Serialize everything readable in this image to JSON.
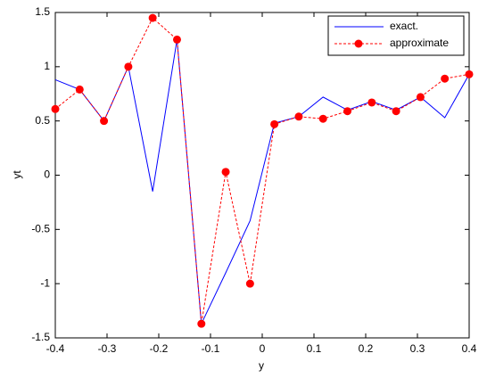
{
  "chart_data": {
    "type": "line",
    "x_label": "y",
    "y_label": "yt",
    "x": [
      -0.4,
      -0.3529,
      -0.3059,
      -0.2588,
      -0.2118,
      -0.1647,
      -0.1176,
      -0.0706,
      -0.0235,
      0.0235,
      0.0706,
      0.1176,
      0.1647,
      0.2118,
      0.2588,
      0.3059,
      0.3529,
      0.4
    ],
    "series": [
      {
        "name": "exact.",
        "color": "#0000ff",
        "line_style": "solid",
        "marker": "none",
        "values": [
          0.88,
          0.79,
          0.5,
          1.0,
          -0.15,
          1.25,
          -1.37,
          -0.9,
          -0.42,
          0.48,
          0.54,
          0.72,
          0.6,
          0.68,
          0.6,
          0.72,
          0.53,
          0.93
        ]
      },
      {
        "name": "approximate",
        "color": "#ff0000",
        "line_style": "dashed",
        "marker": "circle",
        "values": [
          0.61,
          0.79,
          0.5,
          1.0,
          1.45,
          1.25,
          -1.37,
          0.03,
          -1.0,
          0.47,
          0.54,
          0.52,
          0.59,
          0.67,
          0.59,
          0.72,
          0.89,
          0.93
        ]
      }
    ],
    "xlim": [
      -0.4,
      0.4
    ],
    "xticks": [
      -0.4,
      -0.3,
      -0.2,
      -0.1,
      0,
      0.1,
      0.2,
      0.3,
      0.4
    ],
    "ylim": [
      -1.5,
      1.5
    ],
    "yticks": [
      -1.5,
      -1,
      -0.5,
      0,
      0.5,
      1,
      1.5
    ],
    "grid": false,
    "legend": "top-right"
  }
}
